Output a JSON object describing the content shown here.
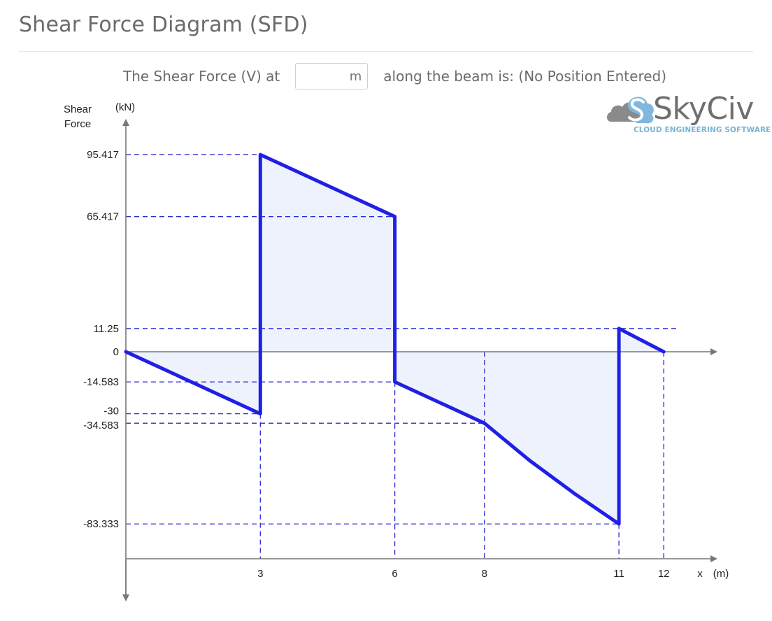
{
  "header": {
    "title": "Shear Force Diagram (SFD)"
  },
  "query": {
    "prefix": "The Shear Force (V) at",
    "unit": "m",
    "value": "",
    "suffix": "along the beam is: (No Position Entered)"
  },
  "logo": {
    "brand_text": "SkyCiv",
    "tagline": "CLOUD ENGINEERING SOFTWARE"
  },
  "colors": {
    "line": "#1f1fe6",
    "fill": "#eef2fd",
    "guide": "#2b2bd4",
    "axis": "#777777",
    "logo_cloud_grey": "#8a8a8a",
    "logo_cloud_blue": "#7fb8dc"
  },
  "chart_data": {
    "type": "area",
    "title": "",
    "ylabel": "Shear Force",
    "yunit": "(kN)",
    "xlabel": "x",
    "xunit": "(m)",
    "xlim": [
      0,
      13
    ],
    "ylim": [
      -83.333,
      95.417
    ],
    "series": [
      {
        "x": [
          0,
          3,
          3,
          6,
          6,
          8,
          9,
          10,
          11,
          11,
          12
        ],
        "y": [
          0,
          -30,
          95.417,
          65.417,
          -14.583,
          -34.583,
          -52.5,
          -68.5,
          -83.333,
          11.25,
          0
        ]
      }
    ],
    "y_ticks": [
      {
        "value": 95.417,
        "label": "95.417"
      },
      {
        "value": 65.417,
        "label": "65.417"
      },
      {
        "value": 11.25,
        "label": "11.25"
      },
      {
        "value": 0,
        "label": "0"
      },
      {
        "value": -14.583,
        "label": "-14.583"
      },
      {
        "value": -30,
        "label": "-30"
      },
      {
        "value": -34.583,
        "label": "-34.583"
      },
      {
        "value": -83.333,
        "label": "-83.333"
      }
    ],
    "x_ticks": [
      {
        "value": 3,
        "label": "3"
      },
      {
        "value": 6,
        "label": "6"
      },
      {
        "value": 8,
        "label": "8"
      },
      {
        "value": 11,
        "label": "11"
      },
      {
        "value": 12,
        "label": "12"
      }
    ],
    "h_guides": [
      {
        "y": 95.417,
        "x": 3
      },
      {
        "y": 65.417,
        "x": 6
      },
      {
        "y": 11.25,
        "x": 12.3
      },
      {
        "y": -14.583,
        "x": 6
      },
      {
        "y": -30,
        "x": 3
      },
      {
        "y": -34.583,
        "x": 8
      },
      {
        "y": -83.333,
        "x": 11
      }
    ],
    "v_guides": [
      {
        "x": 3,
        "y": -30
      },
      {
        "x": 6,
        "y": -14.583
      },
      {
        "x": 8,
        "y": 0
      },
      {
        "x": 11,
        "y": -83.333
      },
      {
        "x": 12,
        "y": 0
      }
    ],
    "grid": false,
    "legend": "none"
  }
}
